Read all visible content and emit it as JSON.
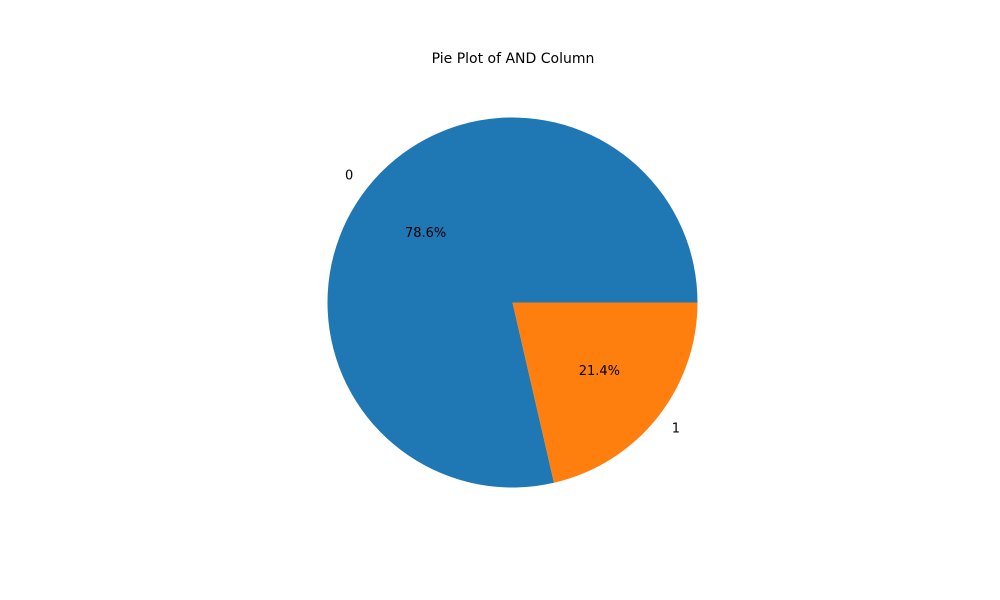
{
  "chart_data": {
    "type": "pie",
    "title": "Pie Plot of AND Column",
    "categories": [
      "0",
      "1"
    ],
    "values": [
      78.6,
      21.4
    ],
    "percent_labels": [
      "78.6%",
      "21.4%"
    ],
    "colors": [
      "#1f77b4",
      "#ff7f0e"
    ],
    "start_angle_deg": 0,
    "direction": "counterclockwise"
  }
}
